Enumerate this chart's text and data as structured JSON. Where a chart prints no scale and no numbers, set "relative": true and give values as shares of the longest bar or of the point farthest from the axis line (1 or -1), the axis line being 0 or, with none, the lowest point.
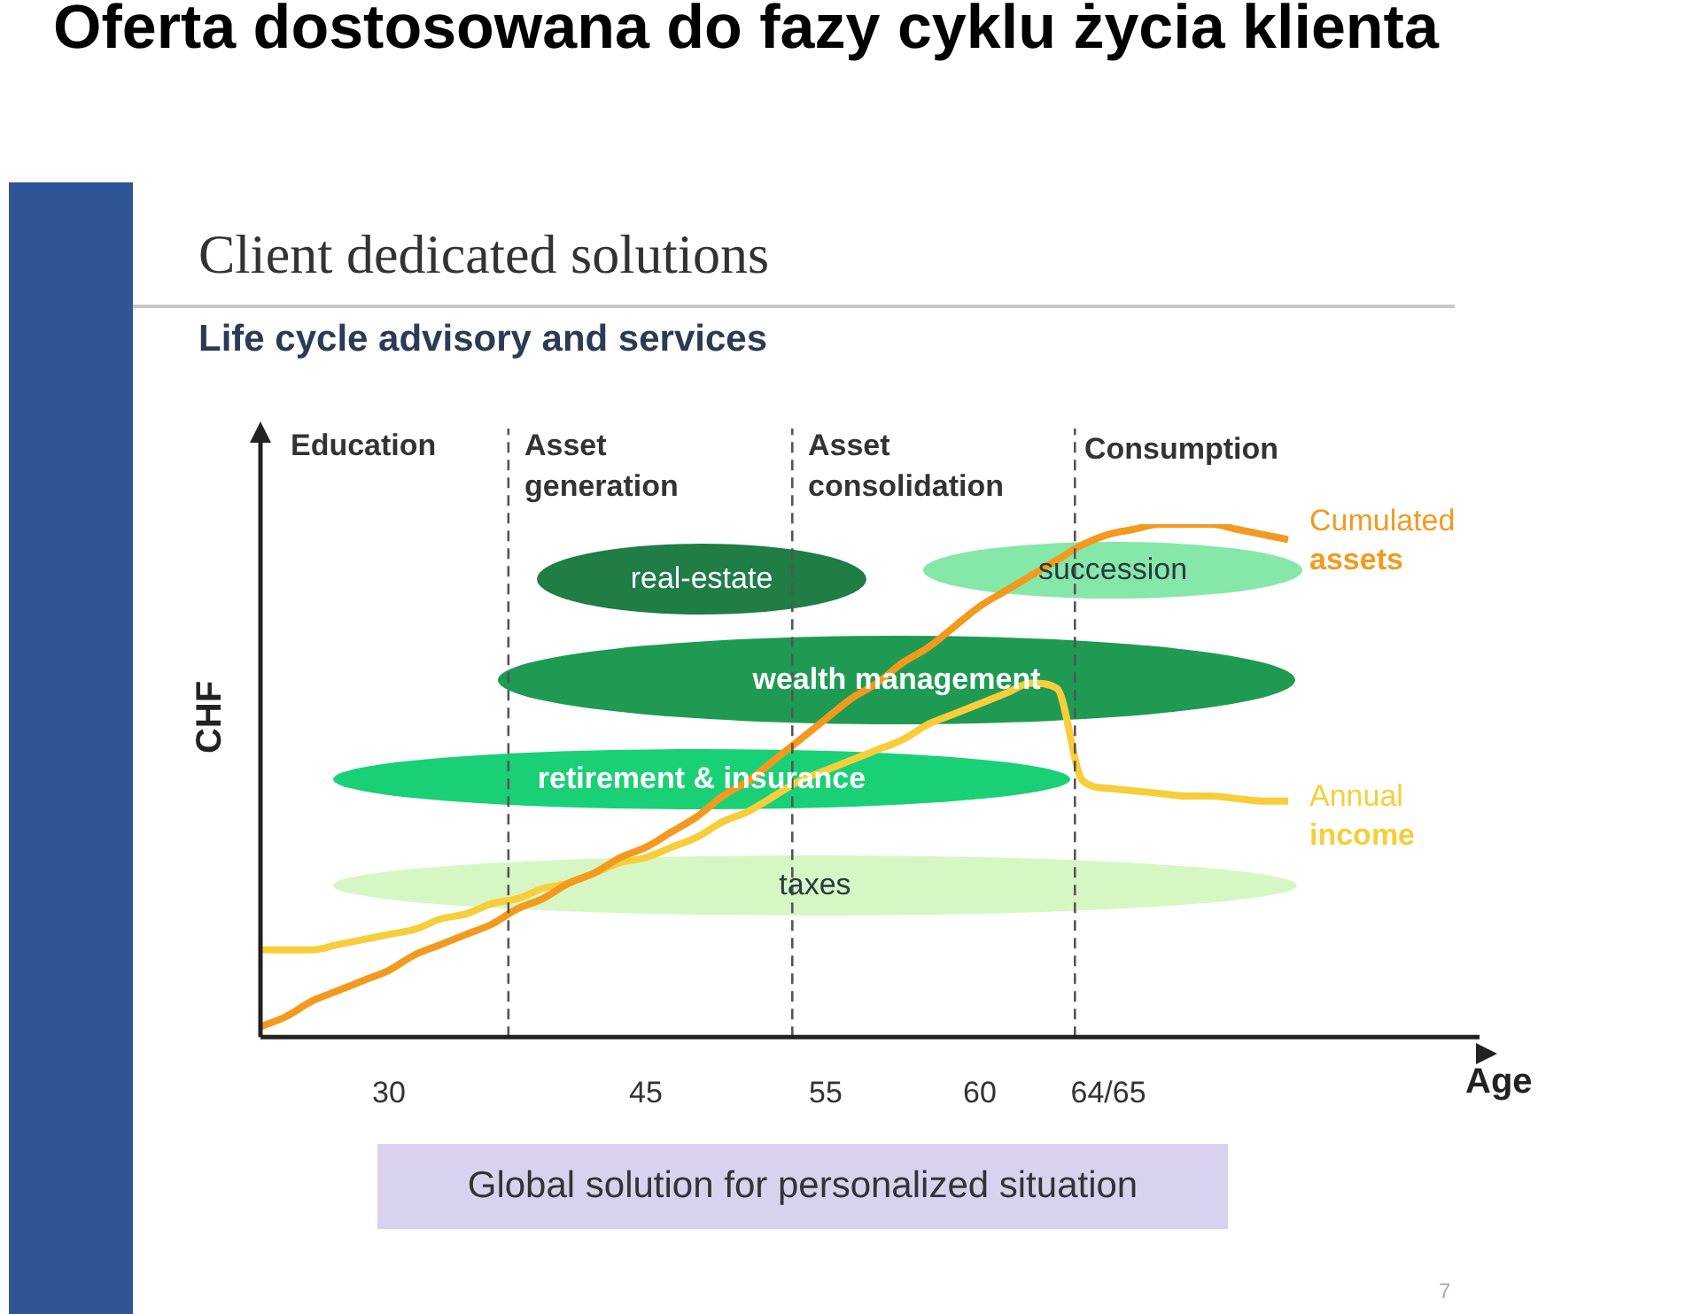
{
  "chart_data": {
    "type": "line",
    "title": "Oferta dostosowana do fazy cyklu życia klienta",
    "subtitle": "Client dedicated solutions",
    "xlabel": "Age",
    "ylabel": "CHF",
    "relative": true,
    "legend": false,
    "grid": false,
    "marker": "none",
    "annotations": [
      "Life cycle advisory and services",
      "Education",
      "Asset generation",
      "Asset consolidation",
      "Consumption",
      "real-estate",
      "succession",
      "wealth management",
      "retirement & insurance",
      "taxes",
      "Global solution for personalized situation",
      "7"
    ],
    "categories": [
      null,
      null,
      null,
      null,
      null,
      "30",
      null,
      null,
      null,
      null,
      null,
      null,
      null,
      null,
      null,
      "45",
      null,
      null,
      null,
      null,
      null,
      null,
      "55",
      null,
      null,
      null,
      null,
      null,
      "60",
      null,
      null,
      null,
      null,
      "64/65",
      null,
      null,
      null,
      null,
      null,
      null,
      null
    ],
    "series": [
      {
        "name": "Cumulated assets",
        "color": "#f39a1e",
        "values": [
          0.02,
          0.04,
          0.07,
          0.09,
          0.11,
          0.13,
          0.16,
          0.18,
          0.2,
          0.22,
          0.25,
          0.27,
          0.3,
          0.32,
          0.35,
          0.37,
          0.4,
          0.43,
          0.47,
          0.5,
          0.54,
          0.58,
          0.62,
          0.66,
          0.69,
          0.73,
          0.76,
          0.8,
          0.84,
          0.87,
          0.9,
          0.93,
          0.96,
          0.98,
          0.99,
          1.0,
          1.0,
          1.0,
          0.99,
          0.98,
          0.97
        ]
      },
      {
        "name": "Annual income",
        "color": "#f7ce3a",
        "values": [
          0.17,
          0.17,
          0.17,
          0.18,
          0.19,
          0.2,
          0.21,
          0.23,
          0.24,
          0.26,
          0.27,
          0.29,
          0.3,
          0.32,
          0.34,
          0.35,
          0.37,
          0.39,
          0.42,
          0.44,
          0.47,
          0.5,
          0.52,
          0.54,
          0.56,
          0.58,
          0.61,
          0.63,
          0.65,
          0.67,
          0.69,
          0.68,
          0.5,
          0.485,
          0.48,
          0.475,
          0.47,
          0.47,
          0.465,
          0.46,
          0.46
        ]
      }
    ]
  }
}
